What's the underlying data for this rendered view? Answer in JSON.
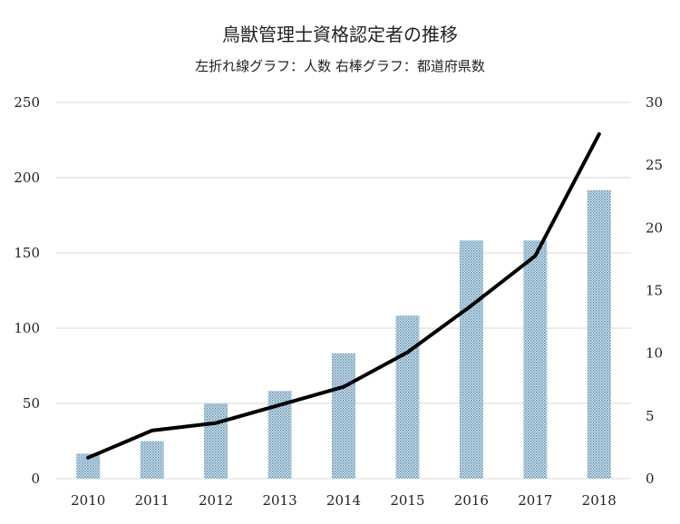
{
  "chart_data": {
    "type": "bar",
    "title": "鳥獣管理士資格認定者の推移",
    "subtitle": "左折れ線グラフ：人数  右棒グラフ：都道府県数",
    "categories": [
      "2010",
      "2011",
      "2012",
      "2013",
      "2014",
      "2015",
      "2016",
      "2017",
      "2018"
    ],
    "series": [
      {
        "type": "line",
        "axis": "left",
        "color": "#000000",
        "values": [
          14,
          32,
          37,
          49,
          61,
          84,
          115,
          148,
          229
        ]
      },
      {
        "type": "bar",
        "axis": "right",
        "color": "#7ea9c4",
        "values": [
          2,
          3,
          6,
          7,
          10,
          13,
          19,
          19,
          23
        ]
      }
    ],
    "ylim_left": [
      0,
      250
    ],
    "yticks_left": [
      "0",
      "50",
      "100",
      "150",
      "200",
      "250"
    ],
    "ylim_right": [
      0,
      30
    ],
    "yticks_right": [
      "0",
      "5",
      "10",
      "15",
      "20",
      "25",
      "30"
    ],
    "grid": true,
    "legend": "none"
  }
}
